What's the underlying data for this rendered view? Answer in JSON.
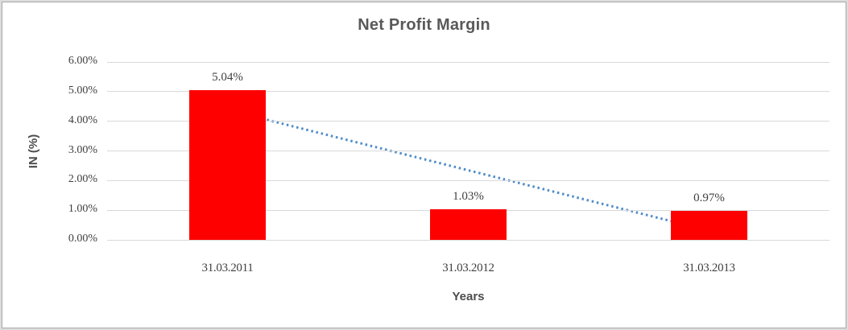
{
  "chart_data": {
    "type": "bar",
    "title": "Net Profit Margin",
    "xlabel": "Years",
    "ylabel": "IN (%)",
    "categories": [
      "31.03.2011",
      "31.03.2012",
      "31.03.2013"
    ],
    "values": [
      5.04,
      1.03,
      0.97
    ],
    "data_labels": [
      "5.04%",
      "1.03%",
      "0.97%"
    ],
    "ylim": [
      0,
      6
    ],
    "ytick_values": [
      0,
      1,
      2,
      3,
      4,
      5,
      6
    ],
    "ytick_labels": [
      "0.00%",
      "1.00%",
      "2.00%",
      "3.00%",
      "4.00%",
      "5.00%",
      "6.00%"
    ],
    "grid": true,
    "legend": "none",
    "trendline": "linear",
    "colors": {
      "bar": "#ff0000",
      "trendline": "#4f8bc9",
      "gridline": "#d9d9d9",
      "title_text": "#595959",
      "label_text": "#3f3f3f"
    }
  }
}
